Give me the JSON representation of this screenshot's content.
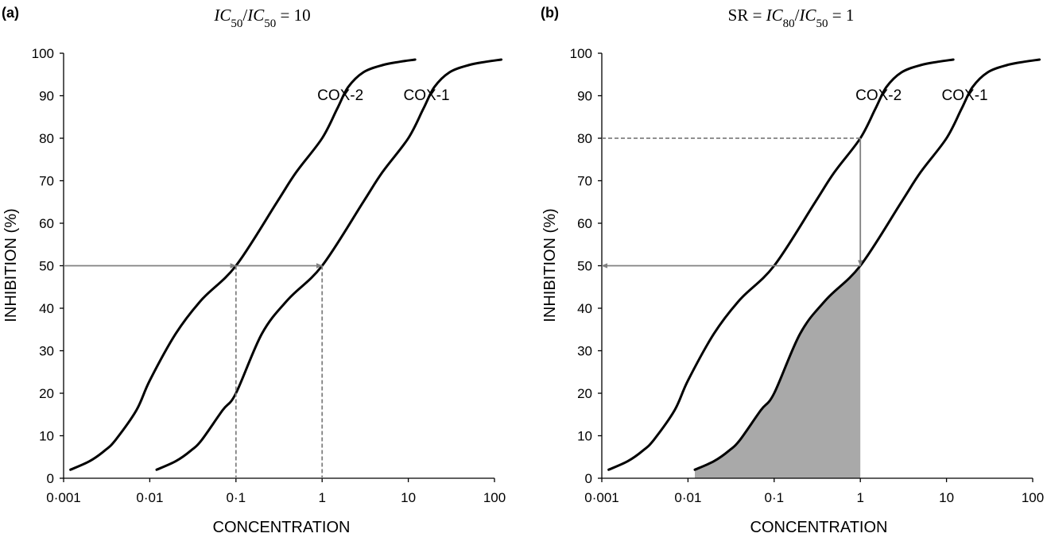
{
  "chart_data": [
    {
      "type": "line",
      "panel_label": "(a)",
      "title": {
        "parts": [
          {
            "text": "IC",
            "italic": true
          },
          {
            "text": "50",
            "italic": false,
            "sub": true
          },
          {
            "text": "/",
            "italic": false
          },
          {
            "text": "IC",
            "italic": true
          },
          {
            "text": "50",
            "italic": false,
            "sub": true
          },
          {
            "text": " = 10",
            "italic": false
          }
        ]
      },
      "xlabel": "CONCENTRATION",
      "ylabel": "INHIBITION (%)",
      "x_scale": "log",
      "xlim": [
        0.001,
        100
      ],
      "ylim": [
        0,
        100
      ],
      "x_ticks": [
        0.001,
        0.01,
        0.1,
        1,
        10,
        100
      ],
      "x_tick_labels": [
        "0·001",
        "0·01",
        "0·1",
        "1",
        "10",
        "100"
      ],
      "y_ticks": [
        0,
        10,
        20,
        30,
        40,
        50,
        60,
        70,
        80,
        90,
        100
      ],
      "y_tick_labels": [
        "0",
        "10",
        "20",
        "30",
        "40",
        "50",
        "60",
        "70",
        "80",
        "90",
        "100"
      ],
      "grid": false,
      "series": [
        {
          "name": "COX-2",
          "x": [
            0.0012,
            0.002,
            0.003,
            0.004,
            0.007,
            0.01,
            0.02,
            0.04,
            0.1,
            0.3,
            0.5,
            1,
            1.5,
            2,
            3,
            5,
            8,
            12
          ],
          "y": [
            2,
            4,
            6.5,
            9,
            16,
            23,
            34,
            42,
            50,
            65,
            72,
            80,
            87,
            92,
            95.5,
            97.2,
            98,
            98.5
          ]
        },
        {
          "name": "COX-1",
          "x": [
            0.012,
            0.02,
            0.03,
            0.04,
            0.07,
            0.1,
            0.2,
            0.4,
            1,
            3,
            5,
            10,
            15,
            20,
            30,
            50,
            80,
            120
          ],
          "y": [
            2,
            4,
            6.5,
            9,
            16,
            20,
            34,
            42,
            50,
            65,
            72,
            80,
            87,
            92,
            95.5,
            97.2,
            98,
            98.5
          ]
        }
      ],
      "annotations": [
        {
          "kind": "arrow",
          "from": [
            0.001,
            50
          ],
          "to": [
            0.1,
            50
          ]
        },
        {
          "kind": "arrow",
          "from": [
            0.1,
            50
          ],
          "to": [
            1,
            50
          ]
        },
        {
          "kind": "dashed",
          "from": [
            0.1,
            50
          ],
          "to": [
            0.1,
            0
          ]
        },
        {
          "kind": "dashed",
          "from": [
            1,
            50
          ],
          "to": [
            1,
            0
          ]
        }
      ],
      "shaded_region": null
    },
    {
      "type": "line",
      "panel_label": "(b)",
      "title": {
        "parts": [
          {
            "text": "SR = ",
            "italic": false
          },
          {
            "text": "IC",
            "italic": true
          },
          {
            "text": "80",
            "italic": false,
            "sub": true
          },
          {
            "text": "/",
            "italic": false
          },
          {
            "text": "IC",
            "italic": true
          },
          {
            "text": "50",
            "italic": false,
            "sub": true
          },
          {
            "text": " = 1",
            "italic": false
          }
        ]
      },
      "xlabel": "CONCENTRATION",
      "ylabel": "INHIBITION (%)",
      "x_scale": "log",
      "xlim": [
        0.001,
        100
      ],
      "ylim": [
        0,
        100
      ],
      "x_ticks": [
        0.001,
        0.01,
        0.1,
        1,
        10,
        100
      ],
      "x_tick_labels": [
        "0·001",
        "0·01",
        "0·1",
        "1",
        "10",
        "100"
      ],
      "y_ticks": [
        0,
        10,
        20,
        30,
        40,
        50,
        60,
        70,
        80,
        90,
        100
      ],
      "y_tick_labels": [
        "0",
        "10",
        "20",
        "30",
        "40",
        "50",
        "60",
        "70",
        "80",
        "90",
        "100"
      ],
      "grid": false,
      "series": [
        {
          "name": "COX-2",
          "x": [
            0.0012,
            0.002,
            0.003,
            0.004,
            0.007,
            0.01,
            0.02,
            0.04,
            0.1,
            0.3,
            0.5,
            1,
            1.5,
            2,
            3,
            5,
            8,
            12
          ],
          "y": [
            2,
            4,
            6.5,
            9,
            16,
            23,
            34,
            42,
            50,
            65,
            72,
            80,
            87,
            92,
            95.5,
            97.2,
            98,
            98.5
          ]
        },
        {
          "name": "COX-1",
          "x": [
            0.012,
            0.02,
            0.03,
            0.04,
            0.07,
            0.1,
            0.2,
            0.4,
            1,
            3,
            5,
            10,
            15,
            20,
            30,
            50,
            80,
            120
          ],
          "y": [
            2,
            4,
            6.5,
            9,
            16,
            20,
            34,
            42,
            50,
            65,
            72,
            80,
            87,
            92,
            95.5,
            97.2,
            98,
            98.5
          ]
        }
      ],
      "annotations": [
        {
          "kind": "dashed",
          "from": [
            0.001,
            80
          ],
          "to": [
            1,
            80
          ]
        },
        {
          "kind": "arrow",
          "from": [
            1,
            80
          ],
          "to": [
            1,
            50
          ]
        },
        {
          "kind": "arrow",
          "from": [
            1,
            50
          ],
          "to": [
            0.001,
            50
          ]
        }
      ],
      "shaded_region": {
        "under_series": "COX-1",
        "x_from": 0.012,
        "x_to": 1,
        "color": "#a9a9a9"
      }
    }
  ]
}
